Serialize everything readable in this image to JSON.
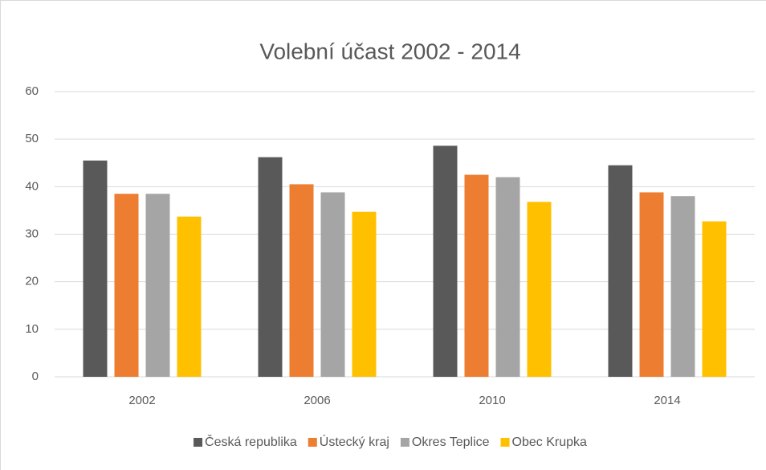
{
  "chart_data": {
    "type": "bar",
    "title": "Volební účast 2002 - 2014",
    "categories": [
      "2002",
      "2006",
      "2010",
      "2014"
    ],
    "series": [
      {
        "name": "Česká republika",
        "color": "#595959",
        "values": [
          45.5,
          46.2,
          48.6,
          44.5
        ]
      },
      {
        "name": "Ústecký kraj",
        "color": "#ed7d31",
        "values": [
          38.5,
          40.5,
          42.5,
          38.8
        ]
      },
      {
        "name": "Okres Teplice",
        "color": "#a5a5a5",
        "values": [
          38.5,
          38.8,
          42.0,
          38.0
        ]
      },
      {
        "name": "Obec Krupka",
        "color": "#ffc000",
        "values": [
          33.7,
          34.7,
          36.8,
          32.7
        ]
      }
    ],
    "ylim": [
      0,
      60
    ],
    "yticks": [
      0,
      10,
      20,
      30,
      40,
      50,
      60
    ],
    "grid": true,
    "legend": "bottom"
  }
}
